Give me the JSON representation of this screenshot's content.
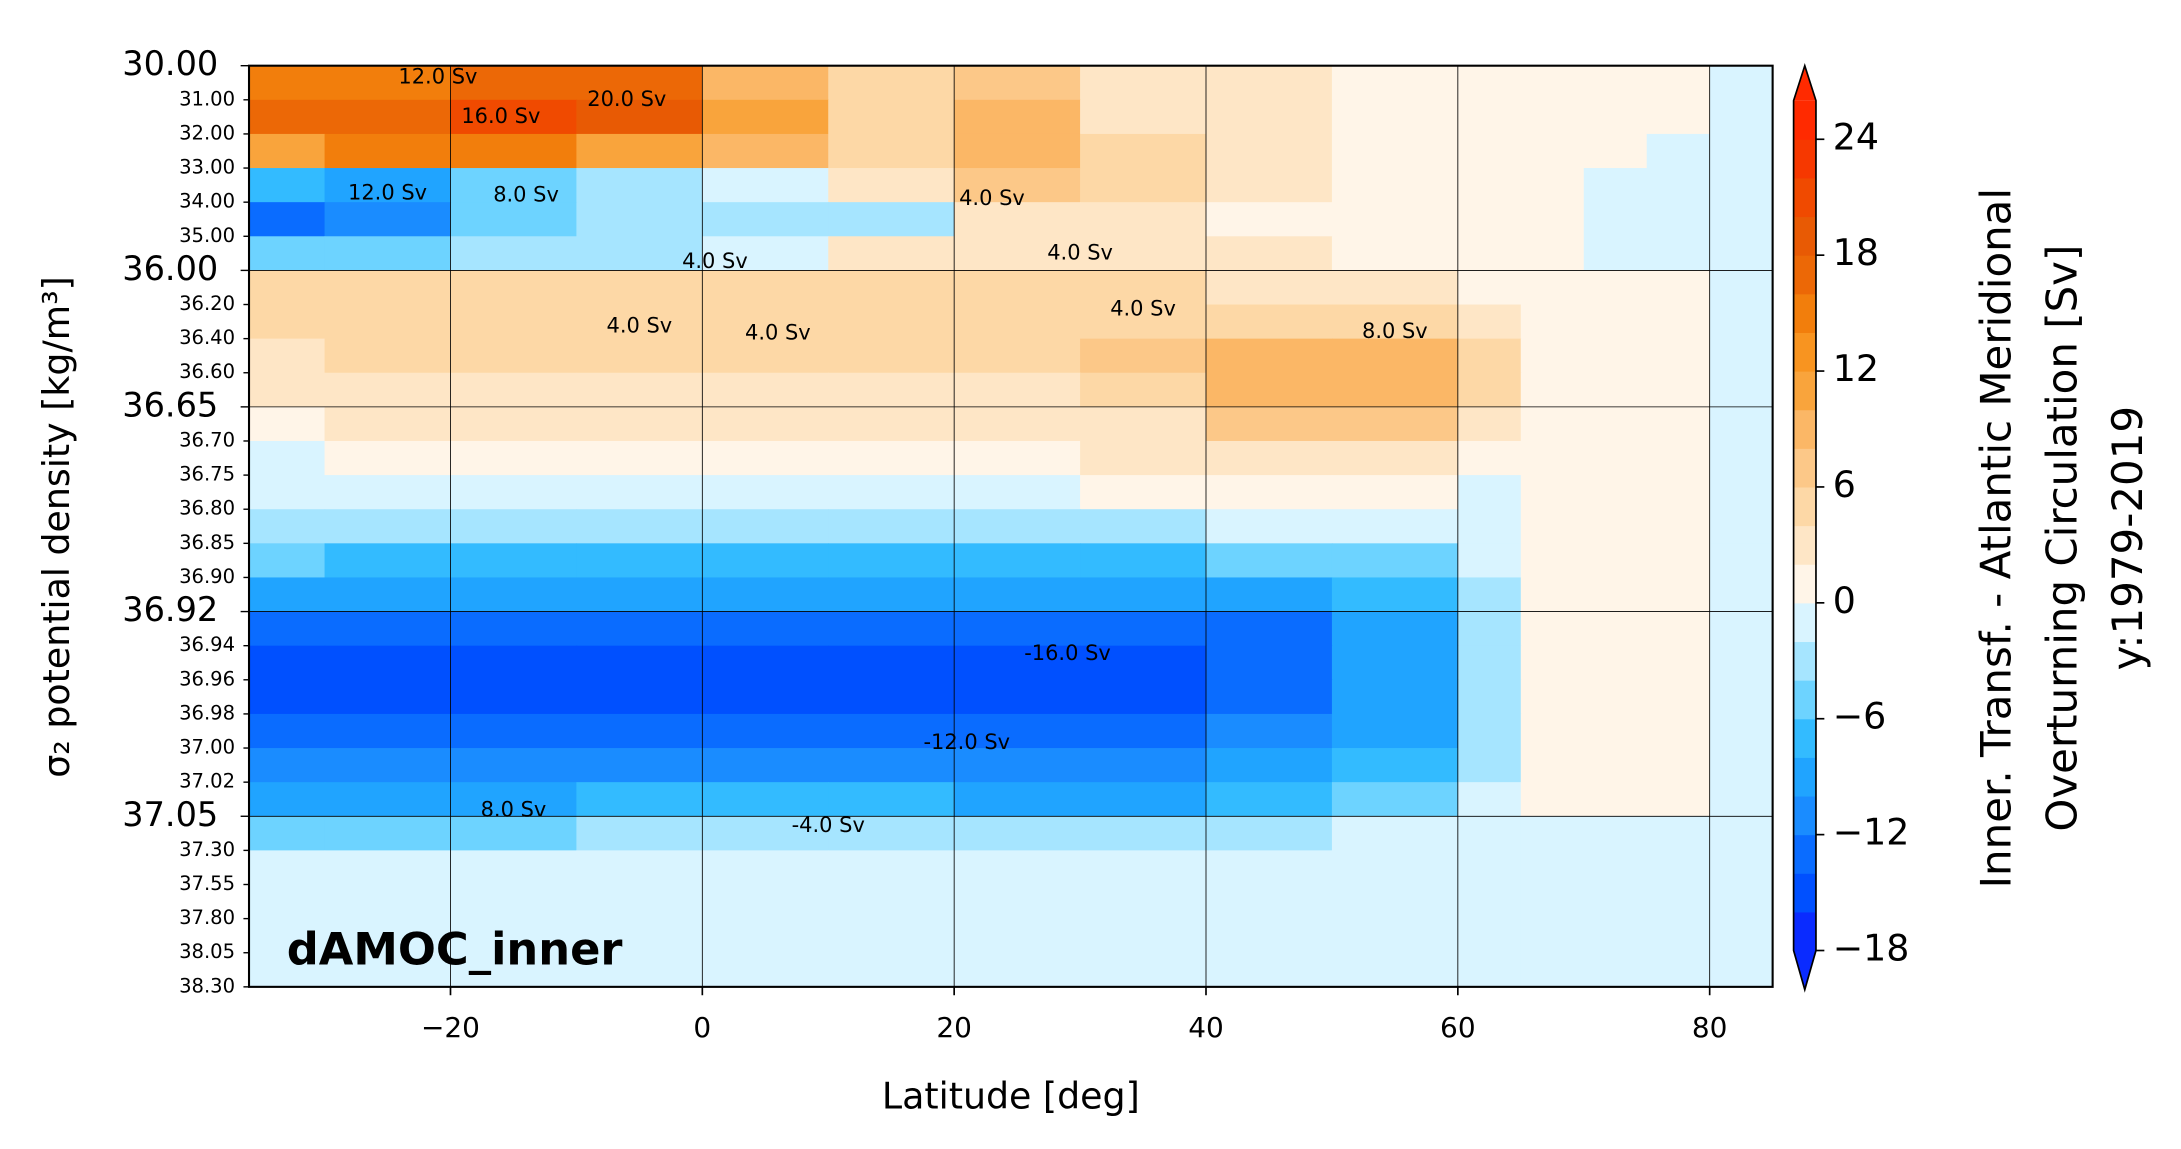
{
  "chart_data": {
    "type": "filled_contour",
    "xlabel": "Latitude [deg]",
    "ylabel": "σ₂ potential density [kg/m³]",
    "xlim": [
      -36,
      85
    ],
    "ylim": [
      30,
      38.3
    ],
    "yscale": "piecewise",
    "grid": true,
    "xticks": [
      {
        "value": -20,
        "label": "−20"
      },
      0,
      20,
      40,
      60,
      80
    ],
    "yticks_major": [
      {
        "value": 30,
        "label": "30.00"
      },
      {
        "value": 36,
        "label": "36.00"
      },
      36.65,
      36.92,
      37.05
    ],
    "yticks": [
      {
        "value": 31,
        "label": "31.00"
      },
      {
        "value": 32,
        "label": "32.00"
      },
      {
        "value": 33,
        "label": "33.00"
      },
      {
        "value": 34,
        "label": "34.00"
      },
      {
        "value": 35,
        "label": "35.00"
      },
      {
        "value": 36.2,
        "label": "36.20"
      },
      {
        "value": 36.4,
        "label": "36.40"
      },
      {
        "value": 36.6,
        "label": "36.60"
      },
      {
        "value": 36.7,
        "label": "36.70"
      },
      36.75,
      {
        "value": 36.8,
        "label": "36.80"
      },
      36.85,
      {
        "value": 36.9,
        "label": "36.90"
      },
      36.94,
      36.96,
      36.98,
      {
        "value": 37,
        "label": "37.00"
      },
      37.02,
      {
        "value": 37.3,
        "label": "37.30"
      },
      37.55,
      {
        "value": 37.8,
        "label": "37.80"
      },
      38.05,
      {
        "value": 38.3,
        "label": "38.30"
      }
    ],
    "x_edges": [
      -36,
      -30,
      -20,
      -10,
      0,
      10,
      20,
      30,
      40,
      50,
      60,
      65,
      70,
      75,
      80,
      85
    ],
    "z": [
      [
        14,
        14,
        16,
        16,
        8,
        4,
        6,
        2,
        2,
        1,
        1,
        1,
        0.5,
        0.5,
        -1
      ],
      [
        16,
        16,
        20,
        18,
        10,
        4,
        8,
        3,
        2,
        1,
        1,
        0.5,
        0.5,
        0.5,
        -1
      ],
      [
        12,
        14,
        14,
        12,
        8,
        4,
        8,
        4,
        2,
        1,
        1,
        0.5,
        0.5,
        -1,
        -1
      ],
      [
        -8,
        -10,
        -6,
        -4,
        -2,
        2,
        6,
        4,
        2,
        1,
        0.5,
        0.5,
        -1,
        -1,
        -1
      ],
      [
        -14,
        -12,
        -6,
        -4,
        -4,
        -3,
        2,
        2,
        1,
        0.5,
        0.5,
        0.5,
        -1,
        -1,
        -1
      ],
      [
        -6,
        -6,
        -4,
        -3,
        -2,
        2,
        3,
        3,
        2,
        1,
        0.5,
        0.5,
        -1,
        -1,
        -1
      ],
      [
        4,
        4,
        4,
        4,
        4,
        4,
        4,
        4,
        3,
        2,
        1,
        0.5,
        0.5,
        0.5,
        -1
      ],
      [
        4,
        4,
        4,
        4,
        4,
        4,
        4,
        5,
        5,
        4,
        2,
        1,
        0.5,
        0.5,
        -1
      ],
      [
        3,
        4,
        4,
        4,
        4,
        4,
        4,
        6,
        8,
        8,
        4,
        1,
        0.5,
        0.5,
        -1
      ],
      [
        3,
        3,
        3,
        3,
        3,
        3,
        3,
        4,
        8,
        9,
        4,
        1,
        0.5,
        0.5,
        -1
      ],
      [
        1,
        2,
        2,
        2,
        2,
        2,
        2,
        3,
        6,
        6,
        3,
        1,
        0.5,
        0.5,
        -1
      ],
      [
        -1,
        1,
        1,
        1,
        1,
        1,
        1,
        2,
        3,
        3,
        1,
        0.5,
        0.5,
        0.5,
        -1
      ],
      [
        -2,
        -1,
        -1,
        -1,
        -1,
        -1,
        -1,
        1,
        1,
        1,
        -1,
        0.5,
        0.5,
        0.5,
        -1
      ],
      [
        -4,
        -4,
        -4,
        -3,
        -3,
        -4,
        -4,
        -3,
        -2,
        -2,
        -1,
        0.5,
        0.5,
        0.5,
        -1
      ],
      [
        -6,
        -7,
        -7,
        -7,
        -7,
        -7,
        -8,
        -7,
        -6,
        -5,
        -2,
        0.5,
        0.5,
        0.5,
        -1
      ],
      [
        -10,
        -10,
        -10,
        -10,
        -10,
        -10,
        -10,
        -10,
        -10,
        -8,
        -3,
        0.5,
        0.5,
        0.5,
        -1
      ],
      [
        -14,
        -14,
        -14,
        -14,
        -14,
        -14,
        -14,
        -14,
        -13,
        -10,
        -3,
        0.5,
        0.5,
        0.5,
        -1
      ],
      [
        -15,
        -15,
        -15,
        -16,
        -16,
        -16,
        -16,
        -16,
        -14,
        -10,
        -3,
        0.5,
        0.5,
        0.5,
        -1
      ],
      [
        -15,
        -15,
        -15,
        -15,
        -15,
        -15,
        -15,
        -15,
        -14,
        -10,
        -3,
        0.5,
        0.5,
        0.5,
        -1
      ],
      [
        -13,
        -13,
        -13,
        -13,
        -13,
        -13,
        -13,
        -13,
        -12,
        -9,
        -3,
        0.5,
        0.5,
        0.5,
        -1
      ],
      [
        -11,
        -11,
        -11,
        -11,
        -11,
        -11,
        -11,
        -11,
        -10,
        -8,
        -3,
        0.5,
        0.5,
        0.5,
        -1
      ],
      [
        -9,
        -9,
        -9,
        -8,
        -8,
        -8,
        -9,
        -9,
        -8,
        -6,
        -2,
        0.5,
        0.5,
        0.5,
        -1
      ],
      [
        -5,
        -5,
        -5,
        -4,
        -4,
        -4,
        -4,
        -4,
        -3,
        -2,
        -1,
        -1,
        -1,
        -1,
        -1
      ],
      [
        -1,
        -1,
        -1,
        -1,
        -1,
        -1,
        -1,
        -1,
        -1,
        -1,
        -1,
        -1,
        -1,
        -1,
        -1
      ],
      [
        -1,
        -1,
        -1,
        -1,
        -1,
        -1,
        -1,
        -1,
        -1,
        -1,
        -1,
        -1,
        -1,
        -1,
        -1
      ],
      [
        -1,
        -1,
        -1,
        -1,
        -1,
        -1,
        -1,
        -1,
        -1,
        -1,
        -1,
        -1,
        -1,
        -1,
        -1
      ],
      [
        -1,
        -1,
        -1,
        -1,
        -1,
        -1,
        -1,
        -1,
        -1,
        -1,
        -1,
        -1,
        -1,
        -1,
        -1
      ]
    ],
    "annotations": [
      {
        "text": "12.0 Sv",
        "x": -21,
        "y": 30.35
      },
      {
        "text": "16.0 Sv",
        "x": -16,
        "y": 31.5
      },
      {
        "text": "20.0 Sv",
        "x": -6,
        "y": 31
      },
      {
        "text": "12.0 Sv",
        "x": -25,
        "y": 33.75
      },
      {
        "text": "8.0 Sv",
        "x": -14,
        "y": 33.8
      },
      {
        "text": "4.0 Sv",
        "x": 1,
        "y": 35.75
      },
      {
        "text": "4.0 Sv",
        "x": 23,
        "y": 33.9
      },
      {
        "text": "4.0 Sv",
        "x": 30,
        "y": 35.5
      },
      {
        "text": "4.0 Sv",
        "x": -5,
        "y": 36.33
      },
      {
        "text": "4.0 Sv",
        "x": 6,
        "y": 36.37
      },
      {
        "text": "4.0 Sv",
        "x": 35,
        "y": 36.23
      },
      {
        "text": "8.0 Sv",
        "x": 55,
        "y": 36.36
      },
      {
        "text": "-16.0 Sv",
        "x": 29,
        "y": 36.945
      },
      {
        "text": "-12.0 Sv",
        "x": 21,
        "y": 36.997
      },
      {
        "text": "8.0 Sv",
        "x": -15,
        "y": 37.045
      },
      {
        "text": "-4.0 Sv",
        "x": 10,
        "y": 37.12
      }
    ],
    "panel_label": {
      "text": "dAMOC_inner",
      "x": -33,
      "y": 38.05
    },
    "colorbar": {
      "label": [
        "Inner. Transf. - Atlantic Meridional",
        "Overturning Circulation [Sv]",
        "y:1979-2019"
      ],
      "lim": [
        -18,
        26
      ],
      "extend": "both",
      "ticks": [
        24,
        18,
        12,
        6,
        0,
        {
          "value": -6,
          "label": "−6"
        },
        {
          "value": -12,
          "label": "−12"
        },
        {
          "value": -18,
          "label": "−18"
        }
      ],
      "colors": [
        "#0a2bff",
        "#0050ff",
        "#0a6cff",
        "#1a8cff",
        "#20a4ff",
        "#33bbff",
        "#6dd3ff",
        "#a6e5ff",
        "#d9f4ff",
        "#fff5e8",
        "#fee6c6",
        "#fdd8a6",
        "#fcc888",
        "#fbb766",
        "#f9a43c",
        "#f89420",
        "#f27e0c",
        "#ec6806",
        "#e85a04",
        "#f04a00",
        "#f63800",
        "#ff2a00"
      ]
    }
  }
}
